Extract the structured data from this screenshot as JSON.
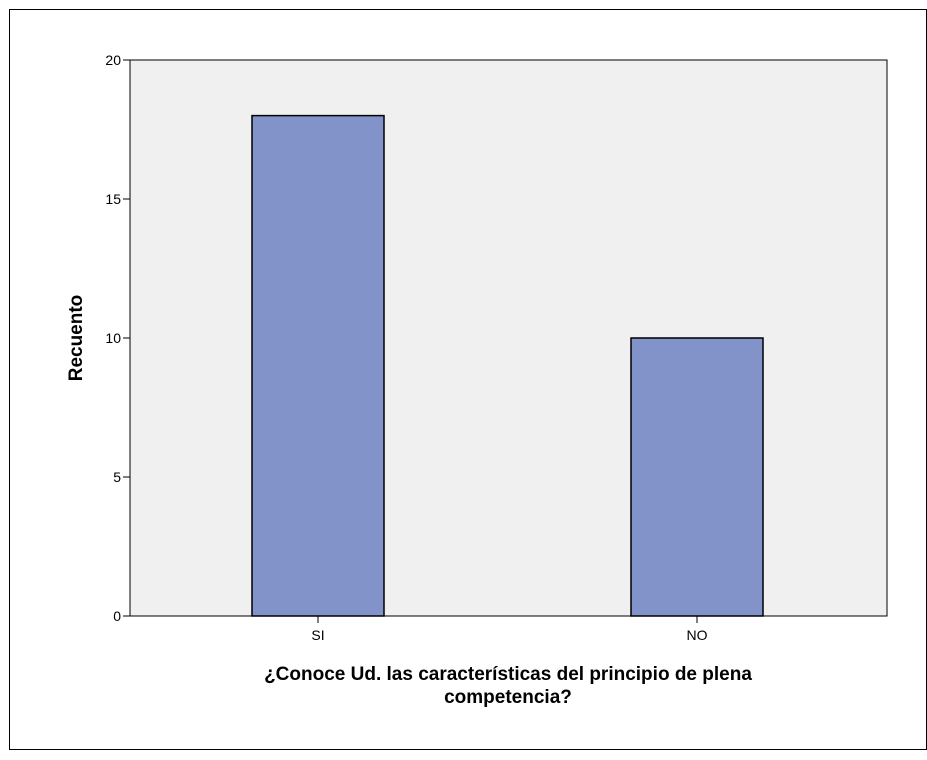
{
  "colors": {
    "plot_background": "#F0F0F0",
    "bar_fill": "#8193C9",
    "bar_stroke": "#000000",
    "axis": "#000000",
    "frame": "#000000"
  },
  "chart_data": {
    "type": "bar",
    "categories": [
      "SI",
      "NO"
    ],
    "values": [
      18,
      10
    ],
    "ylabel": "Recuento",
    "xlabel_lines": [
      "¿Conoce Ud. las características del principio de plena",
      "competencia?"
    ],
    "ylim": [
      0,
      20
    ],
    "yticks": [
      "0",
      "5",
      "10",
      "15",
      "20"
    ],
    "grid": false,
    "legend": "none"
  }
}
